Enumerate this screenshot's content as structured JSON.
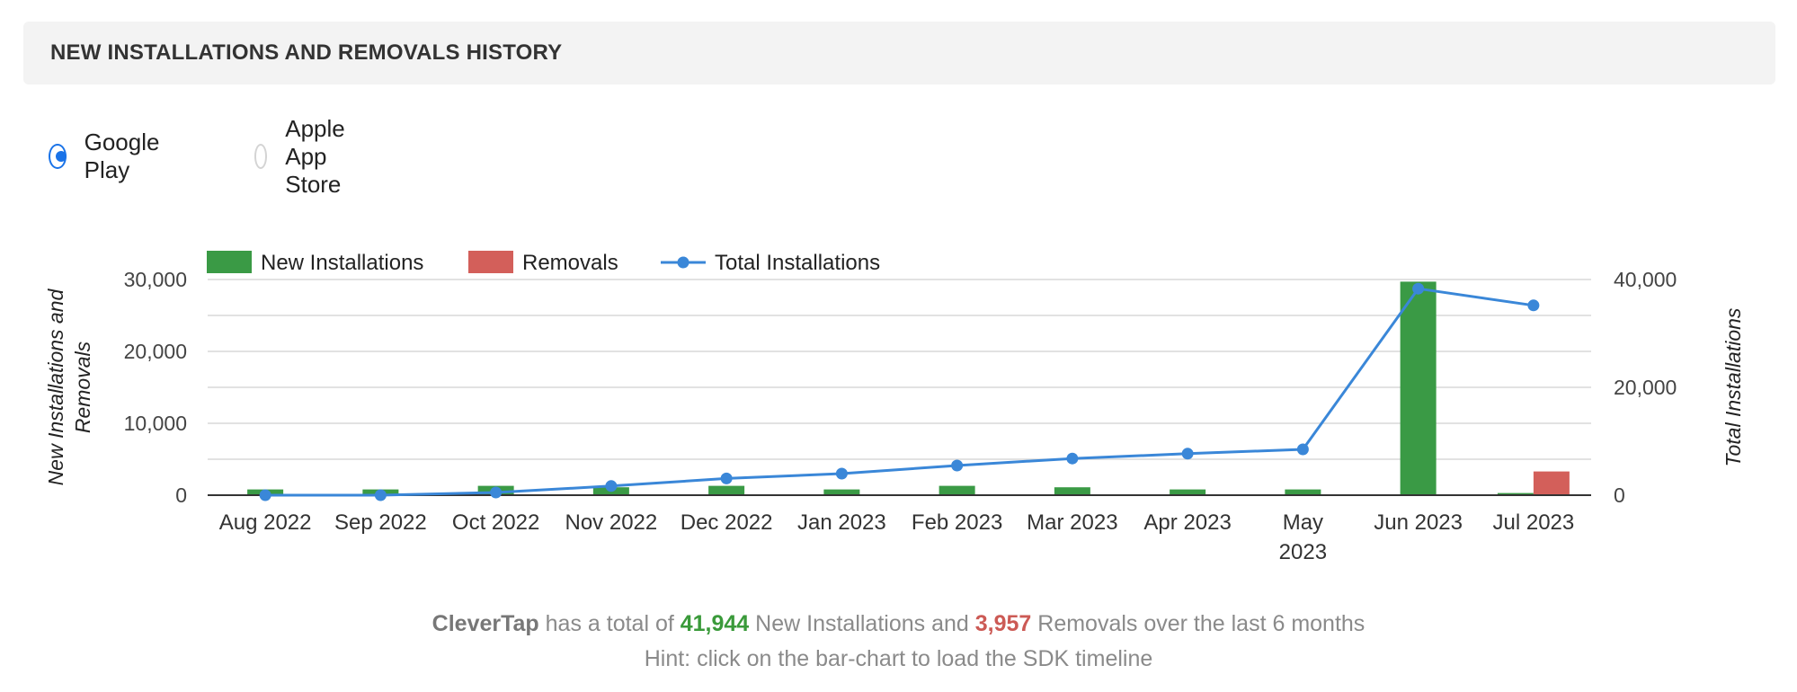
{
  "panel": {
    "title": "NEW INSTALLATIONS AND REMOVALS HISTORY"
  },
  "store_selector": {
    "options": [
      {
        "label": "Google Play",
        "selected": true
      },
      {
        "label": "Apple App Store",
        "selected": false
      }
    ],
    "accent_color": "#1a73e8"
  },
  "chart_data": {
    "type": "bar",
    "categories": [
      "Aug 2022",
      "Sep 2022",
      "Oct 2022",
      "Nov 2022",
      "Dec 2022",
      "Jan 2023",
      "Feb 2023",
      "Mar 2023",
      "Apr 2023",
      "May 2023",
      "Jun 2023",
      "Jul 2023"
    ],
    "category_labels": [
      [
        "Aug 2022"
      ],
      [
        "Sep 2022"
      ],
      [
        "Oct 2022"
      ],
      [
        "Nov 2022"
      ],
      [
        "Dec 2022"
      ],
      [
        "Jan 2023"
      ],
      [
        "Feb 2023"
      ],
      [
        "Mar 2023"
      ],
      [
        "Apr 2023"
      ],
      [
        "May",
        "2023"
      ],
      [
        "Jun 2023"
      ],
      [
        "Jul 2023"
      ]
    ],
    "series": [
      {
        "name": "New Installations",
        "type": "bar",
        "axis": "left",
        "color": "#3a9a45",
        "values": [
          800,
          800,
          1300,
          1100,
          1300,
          800,
          1300,
          1100,
          800,
          800,
          29700,
          300
        ]
      },
      {
        "name": "Removals",
        "type": "bar",
        "axis": "left",
        "color": "#d35f5a",
        "values": [
          0,
          0,
          0,
          0,
          0,
          0,
          0,
          0,
          0,
          0,
          0,
          3300
        ]
      },
      {
        "name": "Total Installations",
        "type": "line",
        "axis": "right",
        "color": "#3a87d8",
        "values": [
          0,
          0,
          500,
          1700,
          3100,
          4000,
          5500,
          6800,
          7700,
          8500,
          38300,
          35200
        ]
      }
    ],
    "y_left": {
      "label": [
        "New Installations and",
        "Removals"
      ],
      "ylim": [
        0,
        30000
      ],
      "ticks": [
        0,
        10000,
        20000,
        30000
      ],
      "tick_labels": [
        "0",
        "10,000",
        "20,000",
        "30,000"
      ]
    },
    "y_right": {
      "label": [
        "Total Installations"
      ],
      "ylim": [
        0,
        40000
      ],
      "ticks": [
        0,
        20000,
        40000
      ],
      "tick_labels": [
        "0",
        "20,000",
        "40,000"
      ]
    },
    "grid": true,
    "legend_position": "top-left"
  },
  "summary": {
    "brand": "CleverTap",
    "text_1": " has a total of ",
    "new_installs": "41,944",
    "text_2": " New Installations and ",
    "removals": "3,957",
    "text_3": " Removals over the last 6 months",
    "hint": "Hint: click on the bar-chart to load the SDK timeline"
  }
}
